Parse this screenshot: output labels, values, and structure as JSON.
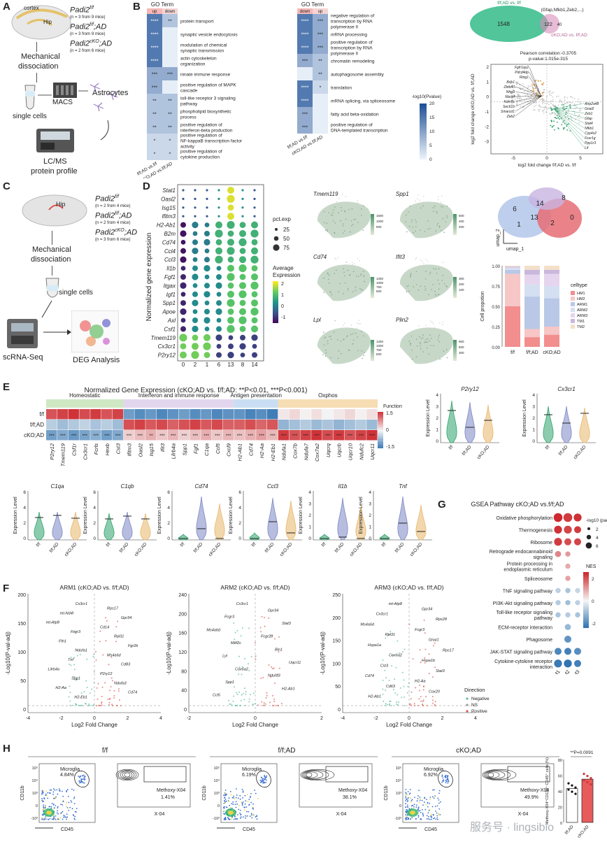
{
  "panels": {
    "A": "A",
    "B": "B",
    "C": "C",
    "D": "D",
    "E": "E",
    "F": "F",
    "G": "G",
    "H": "H"
  },
  "panelA": {
    "brain_labels": [
      "cortex",
      "Hip"
    ],
    "genotypes": [
      {
        "name": "Padi2",
        "sup": "f/f",
        "rest": "",
        "n": "(n = 3 from 9 mice)"
      },
      {
        "name": "Padi2",
        "sup": "f/f",
        "rest": ";AD",
        "n": "(n = 3 from 9 mice)"
      },
      {
        "name": "Padi2",
        "sup": "cKO",
        "rest": ";AD",
        "n": "(n = 2 from 6 mice)"
      }
    ],
    "steps": [
      "Mechanical",
      "dissociation",
      "MACS",
      "Astrocytes",
      "single cells",
      "LC/MS",
      "protein profile"
    ]
  },
  "panelB": {
    "title": "GO Term",
    "left_header": [
      "up",
      "down"
    ],
    "right_header": [
      "down",
      "up"
    ],
    "left_terms": [
      "protein transport",
      "synaptic vesicle endocytosis",
      "modulation of chemical synaptic transmission",
      "actin cytoskeleton organization",
      "innate immune response",
      "positive regulation of MAPK cascade",
      "toll-like receptor 3 signaling pathway",
      "phospholipid biosynthetic process",
      "positive regulation of interferon-beta production",
      "positive regulation of NF-kappaB transcription factor activity",
      "positive regulation of cytokine production"
    ],
    "left_sig": [
      [
        "****",
        "**"
      ],
      [
        "****",
        ""
      ],
      [
        "****",
        ""
      ],
      [
        "****",
        ""
      ],
      [
        "***",
        "***"
      ],
      [
        "***",
        ""
      ],
      [
        "**",
        "**"
      ],
      [
        "**",
        "**"
      ],
      [
        "**",
        "**"
      ],
      [
        "*",
        "*"
      ],
      [
        "*",
        "*"
      ]
    ],
    "right_terms": [
      "negative regulation of transcription by RNA polymerase II",
      "mRNA processing",
      "positive regulation of transcription by RNA polymerase II",
      "chromatin remodeling",
      "autophagosome assembly",
      "translation",
      "mRNA splicing, via spliceosome",
      "fatty acid beta-oxidation",
      "positive regulation of DNA-templated transcription"
    ],
    "right_sig": [
      [
        "****",
        "***"
      ],
      [
        "****",
        "***"
      ],
      [
        "****",
        "***"
      ],
      [
        "***",
        "**"
      ],
      [
        "",
        "**"
      ],
      [
        "****",
        "*"
      ],
      [
        "****",
        ""
      ],
      [
        "***",
        ""
      ],
      [
        "***",
        ""
      ]
    ],
    "x_labels": [
      "f/f;AD vs.f/f",
      "cKO;AD vs.f/f;AD"
    ],
    "colorbar_title": "-log10(Pvalue)",
    "colorbar_ticks": [
      "20",
      "15",
      "10",
      "5",
      "0"
    ]
  },
  "panelB_venn": {
    "top_label": "f/f;AD vs. f/f",
    "left_count": "1548",
    "overlap_count": "122",
    "right_count": "40",
    "overlap_note": "(Gfap,Nfkb1,Zeb2,...)",
    "bottom_label": "cKO;AD vs. f/f;AD"
  },
  "panelB_scatter": {
    "corr": "Pearson correlation:-0.3705",
    "pval": "p-value:1.015e-315",
    "xlabel": "log2 fold change f/f;AD vs. f/f",
    "ylabel": "log2 fold change cKO;AD vs. f/f;AD",
    "xticks": [
      "-5",
      "0",
      "5"
    ],
    "yticks": [
      "2",
      "1",
      "0",
      "-1",
      "-2",
      "-3"
    ],
    "genes_left": [
      "Fgfr1op2",
      "Pdcd4dp",
      "Ring1",
      "Brip1",
      "Zbtb40",
      "Nfrg3",
      "Mast4",
      "Kdm5c",
      "Sec61b",
      "Smarcd1",
      "Zeb2"
    ],
    "genes_right": [
      "Atrp2a48",
      "Gnai2",
      "Zeb1",
      "Gfap",
      "Stat4",
      "Nfkb1",
      "Cyp4v2",
      "Fcer1g",
      "Ppp1r3",
      "Lif"
    ]
  },
  "panelC": {
    "brain_label": "Hip",
    "genotypes": [
      {
        "name": "Padi2",
        "sup": "f/f",
        "rest": "",
        "n": "(n = 2 from 4 mice)"
      },
      {
        "name": "Padi2",
        "sup": "f/f",
        "rest": ";AD",
        "n": "(n = 2 from 4 mice)"
      },
      {
        "name": "Padi2",
        "sup": "cKO",
        "rest": ";AD",
        "n": "(n = 3 from 6 mice)"
      }
    ],
    "steps": [
      "Mechanical",
      "dissociation",
      "single cells",
      "scRNA-Seq",
      "DEG Analysis"
    ]
  },
  "panelD_dot": {
    "ylabel": "Normalized gene expression",
    "genes": [
      "Stat1",
      "Oasl2",
      "Isg15",
      "Ifitm3",
      "H2-Ab1",
      "B2m",
      "Cd74",
      "Ccl4",
      "Ccl3",
      "Il1b",
      "Fgf1",
      "Itgax",
      "Igf1",
      "Spp1",
      "Apoe",
      "Axl",
      "Csf1",
      "Tmem119",
      "Cx3cr1",
      "P2ry12"
    ],
    "clusters": [
      "0",
      "2",
      "1",
      "6",
      "13",
      "8",
      "14"
    ],
    "size_title": "pct.exp",
    "size_labels": [
      "25",
      "50",
      "75"
    ],
    "color_title": "Average Expression",
    "color_ticks": [
      "2",
      "1",
      "0",
      "-1"
    ]
  },
  "panelD_feature": {
    "genes": [
      "Tmem119",
      "Spp1",
      "Cd74",
      "Ifit3",
      "Lpl",
      "Plin2"
    ],
    "scales": [
      [
        "1500",
        "1000",
        "500"
      ],
      [
        "600",
        "400",
        "200"
      ],
      [
        "1250",
        "1000",
        "750",
        "500"
      ],
      [
        "300",
        "200",
        "100"
      ],
      [
        "1250",
        "1000",
        "750",
        "500"
      ],
      [
        "900",
        "600",
        "300"
      ]
    ]
  },
  "panelD_umap": {
    "clusters": [
      "14",
      "8",
      "6",
      "13",
      "1",
      "2",
      "0"
    ],
    "xlabel": "umap_1",
    "ylabel": "umap_2"
  },
  "panelD_prop": {
    "ylabel": "Cell propotion",
    "yticks": [
      "1.00",
      "0.75",
      "0.50",
      "0.25",
      "0.00"
    ],
    "groups": [
      "f/f",
      "f/f;AD",
      "cKO;AD"
    ],
    "legend_title": "celltype",
    "celltypes": [
      "HM1",
      "HM2",
      "ARM1",
      "ARM2",
      "ARM3",
      "TM1",
      "TM2"
    ],
    "colors": [
      "#f28e8e",
      "#f7c6c6",
      "#b8c8e6",
      "#d5dff2",
      "#e6d5ee",
      "#c9b8dc",
      "#f3e0c8"
    ],
    "values": [
      [
        0.5,
        0.4,
        0.05,
        0.02,
        0.01,
        0.01,
        0.01
      ],
      [
        0.12,
        0.1,
        0.4,
        0.15,
        0.12,
        0.06,
        0.05
      ],
      [
        0.15,
        0.1,
        0.35,
        0.15,
        0.15,
        0.05,
        0.05
      ]
    ]
  },
  "panelE_heat": {
    "title": "Normalized Gene Expression (cKO;AD vs. f/f;AD: **P<0.01, ***P<0.001)",
    "groups": [
      {
        "name": "Homeostatic",
        "color": "#cfe8c4"
      },
      {
        "name": "Interferon and immune response",
        "color": "#e2d6ee"
      },
      {
        "name": "Antigen presentation",
        "color": "#c9def2"
      },
      {
        "name": "Oxphos",
        "color": "#f6ddb4"
      }
    ],
    "rows": [
      "f/f",
      "f/f;AD",
      "cKO;AD"
    ],
    "genes": [
      "P2ry12",
      "Tmem119",
      "Csf1r",
      "Cx3cr1",
      "Fcrls",
      "Hexb",
      "Cst3",
      "Ifitm3",
      "Oasl2",
      "Isg15",
      "Ifit3",
      "Lilrb4a",
      "Spp1",
      "Fgf1",
      "C1qa",
      "Ccl5",
      "Cxcl9",
      "H2-Ab1",
      "Cd74",
      "H2-Aa",
      "H2-Eb1",
      "Ndufa1",
      "Cox7b",
      "Ndufa7",
      "Cox7a2",
      "Uqcrq",
      "Uqcrb",
      "Uqcr10",
      "Ndufc2",
      "Uqcr11"
    ],
    "sig": [
      "***",
      "***",
      "***",
      "***",
      "***",
      "***",
      "***",
      "***",
      "***",
      "**",
      "***",
      "***",
      "***",
      "***",
      "***",
      "***",
      "***",
      "***",
      "***",
      "***",
      "***",
      "***",
      "***",
      "***",
      "***",
      "***",
      "***",
      "***",
      "***",
      "***"
    ],
    "legend_title": "Function",
    "legend_ticks": [
      "1.5",
      "0",
      "-1.5"
    ]
  },
  "panelE_violin_top": [
    {
      "gene": "P2ry12",
      "yticks": [
        "4",
        "3",
        "2",
        "1",
        "0"
      ]
    },
    {
      "gene": "Cx3cr1",
      "yticks": [
        "4",
        "3",
        "2",
        "1",
        "0"
      ]
    }
  ],
  "panelE_violin_bottom": [
    {
      "gene": "C1qa",
      "yticks": [
        "6",
        "4",
        "2",
        "0"
      ]
    },
    {
      "gene": "C1qb",
      "yticks": [
        "6",
        "4",
        "2",
        "0"
      ]
    },
    {
      "gene": "Cd74",
      "yticks": [
        "6",
        "4",
        "2",
        "0"
      ]
    },
    {
      "gene": "Ccl3",
      "yticks": [
        "6",
        "4",
        "2",
        "0"
      ]
    },
    {
      "gene": "Il1b",
      "yticks": [
        "4",
        "3",
        "2",
        "1",
        "0"
      ]
    },
    {
      "gene": "Tnf",
      "yticks": [
        "4",
        "3",
        "2",
        "1",
        "0"
      ]
    }
  ],
  "violin_ylabel": "Expression Level",
  "violin_groups": [
    "f/f",
    "f/f;AD",
    "cKO;AD"
  ],
  "panelF": [
    {
      "title": "ARM1 (cKO;AD vs. f/f;AD)",
      "yticks": [
        "200",
        "150",
        "100",
        "50",
        "0"
      ],
      "xticks": [
        "-4",
        "-2",
        "0",
        "2",
        "4"
      ],
      "labels": [
        "Cx3cr1",
        "Rps17",
        "mt-Nd4l",
        "Gpr34",
        "mt-Atp8",
        "Cd14",
        "Fcgr3",
        "Rpl31",
        "Fth1",
        "Fgr2b",
        "Ndufa1",
        "Ms4a6d",
        "Tnf",
        "Cd83",
        "Lilrb4a",
        "P2ry12",
        "Spp1",
        "Ndufa3",
        "H2-Aa",
        "Cd74",
        "H2-Eb1"
      ]
    },
    {
      "title": "ARM2 (cKO;AD vs. f/f;AD)",
      "yticks": [
        "240",
        "200",
        "160",
        "120",
        "80",
        "40",
        "0"
      ],
      "xticks": [
        "-2",
        "0",
        "2"
      ],
      "labels": [
        "Cx3cr1",
        "Gpr34",
        "Fcgr3",
        "Stat3",
        "Ms4a6d",
        "Fcgr2b",
        "Mef2c",
        "Bin1",
        "Lyl",
        "Uqcr11",
        "Cox6a2",
        "Ndufa3",
        "Spp1",
        "H2-Ab1",
        "Ccl5"
      ]
    },
    {
      "title": "ARM3 (cKO;AD vs. f/f;AD)",
      "yticks": [
        "250",
        "200",
        "150",
        "100",
        "50",
        "0"
      ],
      "xticks": [
        "-4",
        "-2",
        "0",
        "2",
        "4"
      ],
      "labels": [
        "mt-Atp8",
        "Gpr34",
        "Cx3cr1",
        "Rps28",
        "Ms4a6d",
        "Fcgr3",
        "Rpl31",
        "Gnai1",
        "Hspa1a",
        "Rps17",
        "Cox6a2",
        "Hspa1b",
        "Cst3",
        "Stat3",
        "Cd74",
        "H2-Aa",
        "Cd63",
        "Cox20",
        "H2-Ab1"
      ]
    }
  ],
  "panelF_axes": {
    "xlabel": "Log2 Fold Change",
    "ylabel": "-Log10(P-val-adj)"
  },
  "panelF_legend": {
    "title": "Direction",
    "items": [
      "Negative",
      "NS",
      "Positive"
    ],
    "colors": [
      "#5ab9a2",
      "#999999",
      "#d95b4b"
    ]
  },
  "panelG": {
    "title": "GSEA Pathway cKO;AD vs.f/f;AD",
    "pathways": [
      "Oxidative phosphorylation",
      "Thermogenesis",
      "Ribosome",
      "Retrograde endocannabinoid signaling",
      "Protein processing in endoplasmic reticulum",
      "Spliceosome",
      "TNF signaling pathway",
      "PI3K-Akt signaling pathway",
      "Toll-like receptor signaling pathway",
      "ECM-receptor interaction",
      "Phagosome",
      "JAK-STAT signaling pathway",
      "Cytokine-cytokine receptor interaction"
    ],
    "columns": [
      "ARM1",
      "ARM2",
      "ARM3"
    ],
    "size_title": "-log10 (padj)",
    "size_labels": [
      "2",
      "4",
      "6"
    ],
    "color_title": "NES",
    "color_ticks": [
      "2",
      "0",
      "-2"
    ],
    "nes": [
      [
        2.2,
        2.0,
        2.1
      ],
      [
        2.1,
        1.9,
        2.0
      ],
      [
        2.0,
        1.8,
        1.9
      ],
      [
        1.2,
        1.0,
        null
      ],
      [
        null,
        0.8,
        null
      ],
      [
        null,
        0.9,
        null
      ],
      [
        -0.6,
        -0.8,
        -0.5
      ],
      [
        -0.7,
        -0.9,
        -0.6
      ],
      [
        -0.8,
        -0.7,
        -0.8
      ],
      [
        null,
        -1.0,
        null
      ],
      [
        null,
        -1.6,
        null
      ],
      [
        -1.8,
        -1.9,
        -1.7
      ],
      [
        -2.0,
        -2.1,
        -1.9
      ]
    ],
    "padj": [
      [
        6,
        6,
        5
      ],
      [
        5,
        5,
        4
      ],
      [
        5,
        4,
        4
      ],
      [
        3,
        2,
        null
      ],
      [
        null,
        2,
        null
      ],
      [
        null,
        2,
        null
      ],
      [
        2,
        2,
        2
      ],
      [
        2,
        2,
        2
      ],
      [
        2,
        2,
        2
      ],
      [
        null,
        3,
        null
      ],
      [
        null,
        4,
        null
      ],
      [
        4,
        4,
        4
      ],
      [
        5,
        5,
        4
      ]
    ]
  },
  "panelH": {
    "groups": [
      {
        "name": "f/f",
        "microglia": "4.84%",
        "methoxy": "1.41%"
      },
      {
        "name": "f/f;AD",
        "microglia": "6.19%",
        "methoxy": "38.1%"
      },
      {
        "name": "cKO;AD",
        "microglia": "6.92%",
        "methoxy": "49.9%"
      }
    ],
    "gate_label": "Microglia",
    "methoxy_label": "Methoxy-X04",
    "y1": "CD11b",
    "x1": "CD45",
    "x2": "X-04",
    "ticks_y": [
      "10⁵",
      "10⁴",
      "10³",
      "0",
      "-10³"
    ],
    "bar": {
      "pval": "**P=0.0091",
      "ylabel": "Methoxy-X04⁺CD11b⁺ CD45⁺ cells (%)",
      "yticks": [
        "80",
        "60",
        "40",
        "20",
        "0"
      ],
      "groups": [
        "f/f;AD",
        "cKO;AD"
      ],
      "values": [
        43,
        55
      ],
      "colors": [
        "#ffffff",
        "#e85b5b"
      ]
    }
  },
  "watermark": "服务号 · lingsibio"
}
